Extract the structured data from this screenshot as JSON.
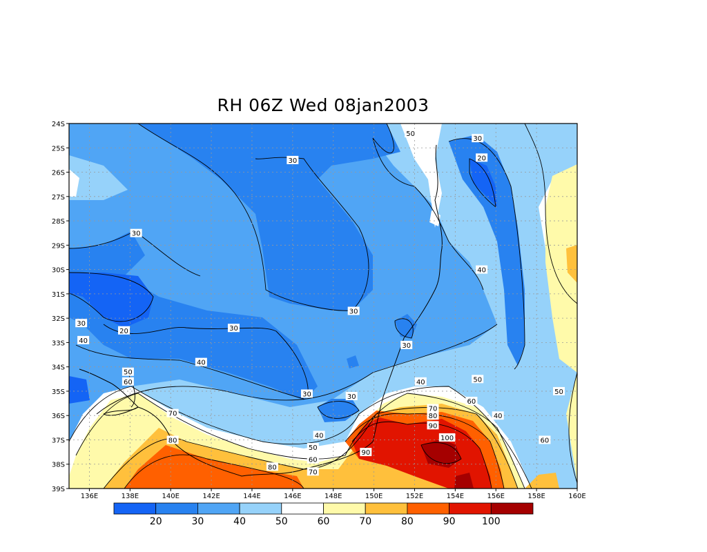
{
  "title": "RH 06Z Wed 08jan2003",
  "map": {
    "lon_ticks": [
      "136E",
      "138E",
      "140E",
      "142E",
      "144E",
      "146E",
      "148E",
      "150E",
      "152E",
      "154E",
      "156E",
      "158E",
      "160E"
    ],
    "lat_ticks": [
      "24S",
      "25S",
      "26S",
      "27S",
      "28S",
      "29S",
      "30S",
      "31S",
      "32S",
      "33S",
      "34S",
      "35S",
      "36S",
      "37S",
      "38S",
      "39S"
    ],
    "grid": true,
    "contour_labels": [
      {
        "text": "30",
        "lon": 146.0,
        "lat": -25.5
      },
      {
        "text": "50",
        "lon": 151.8,
        "lat": -24.4
      },
      {
        "text": "30",
        "lon": 155.1,
        "lat": -24.6
      },
      {
        "text": "20",
        "lon": 155.3,
        "lat": -25.4
      },
      {
        "text": "30",
        "lon": 138.3,
        "lat": -28.5
      },
      {
        "text": "40",
        "lon": 155.3,
        "lat": -30.0
      },
      {
        "text": "30",
        "lon": 149.0,
        "lat": -31.7
      },
      {
        "text": "30",
        "lon": 135.6,
        "lat": -32.2
      },
      {
        "text": "20",
        "lon": 137.7,
        "lat": -32.5
      },
      {
        "text": "30",
        "lon": 143.1,
        "lat": -32.4
      },
      {
        "text": "40",
        "lon": 135.7,
        "lat": -32.9
      },
      {
        "text": "30",
        "lon": 151.6,
        "lat": -33.1
      },
      {
        "text": "40",
        "lon": 141.5,
        "lat": -33.8
      },
      {
        "text": "50",
        "lon": 137.9,
        "lat": -34.2
      },
      {
        "text": "60",
        "lon": 137.9,
        "lat": -34.6
      },
      {
        "text": "40",
        "lon": 152.3,
        "lat": -34.6
      },
      {
        "text": "50",
        "lon": 155.1,
        "lat": -34.5
      },
      {
        "text": "30",
        "lon": 146.7,
        "lat": -35.1
      },
      {
        "text": "30",
        "lon": 148.9,
        "lat": -35.2
      },
      {
        "text": "50",
        "lon": 159.1,
        "lat": -35.0
      },
      {
        "text": "60",
        "lon": 154.8,
        "lat": -35.4
      },
      {
        "text": "70",
        "lon": 152.9,
        "lat": -35.7
      },
      {
        "text": "80",
        "lon": 152.9,
        "lat": -36.0
      },
      {
        "text": "40",
        "lon": 156.1,
        "lat": -36.0
      },
      {
        "text": "70",
        "lon": 140.1,
        "lat": -35.9
      },
      {
        "text": "90",
        "lon": 152.9,
        "lat": -36.4
      },
      {
        "text": "40",
        "lon": 147.3,
        "lat": -36.8
      },
      {
        "text": "80",
        "lon": 140.1,
        "lat": -37.0
      },
      {
        "text": "100",
        "lon": 153.6,
        "lat": -36.9
      },
      {
        "text": "60",
        "lon": 158.4,
        "lat": -37.0
      },
      {
        "text": "50",
        "lon": 147.0,
        "lat": -37.3
      },
      {
        "text": "90",
        "lon": 149.6,
        "lat": -37.5
      },
      {
        "text": "60",
        "lon": 147.0,
        "lat": -37.8
      },
      {
        "text": "80",
        "lon": 145.0,
        "lat": -38.1
      },
      {
        "text": "70",
        "lon": 147.0,
        "lat": -38.3
      }
    ]
  },
  "colorbar": {
    "colors": [
      "#1464f5",
      "#2882f0",
      "#50a5f5",
      "#96d2fa",
      "#ffffff",
      "#fffaaa",
      "#ffc03c",
      "#ff6000",
      "#e11400",
      "#a50000"
    ],
    "labels": [
      "20",
      "30",
      "40",
      "50",
      "60",
      "70",
      "80",
      "90",
      "100"
    ]
  }
}
